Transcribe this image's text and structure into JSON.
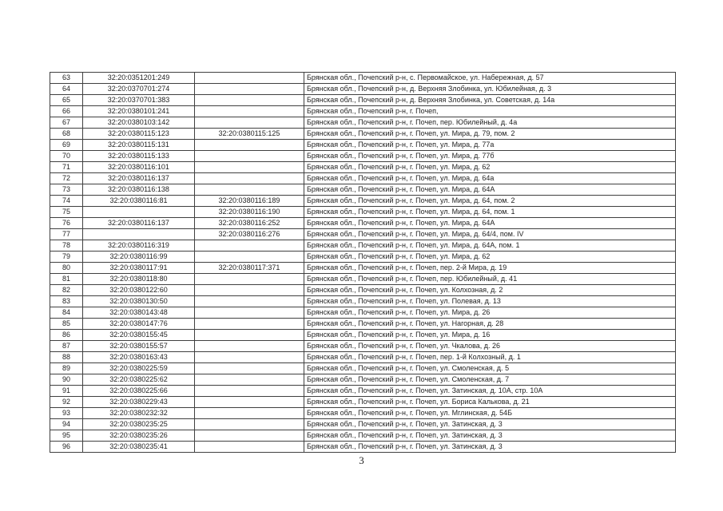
{
  "document": {
    "page_number": "3"
  },
  "table": {
    "columns": [
      "row_number",
      "cadastral_number_1",
      "cadastral_number_2",
      "address"
    ],
    "rows": [
      [
        "63",
        "32:20:0351201:249",
        "",
        "Брянская обл., Почепский р-н, с. Первомайское, ул. Набережная, д. 57"
      ],
      [
        "64",
        "32:20:0370701:274",
        "",
        "Брянская обл., Почепский р-н, д. Верхняя Злобинка, ул. Юбилейная, д. 3"
      ],
      [
        "65",
        "32:20:0370701:383",
        "",
        "Брянская обл., Почепский р-н, д. Верхняя Злобинка, ул. Советская, д. 14а"
      ],
      [
        "66",
        "32:20:0380101:241",
        "",
        "Брянская обл., Почепский р-н, г. Почеп,"
      ],
      [
        "67",
        "32:20:0380103:142",
        "",
        "Брянская обл., Почепский р-н, г. Почеп, пер. Юбилейный, д. 4а"
      ],
      [
        "68",
        "32:20:0380115:123",
        "32:20:0380115:125",
        "Брянская обл., Почепский р-н, г. Почеп, ул. Мира, д. 79, пом. 2"
      ],
      [
        "69",
        "32:20:0380115:131",
        "",
        "Брянская обл., Почепский р-н, г. Почеп, ул. Мира, д. 77а"
      ],
      [
        "70",
        "32:20:0380115:133",
        "",
        "Брянская обл., Почепский р-н, г. Почеп, ул. Мира, д. 77б"
      ],
      [
        "71",
        "32:20:0380116:101",
        "",
        "Брянская обл., Почепский р-н, г. Почеп, ул. Мира, д. 62"
      ],
      [
        "72",
        "32:20:0380116:137",
        "",
        "Брянская обл., Почепский р-н, г. Почеп, ул. Мира, д. 64а"
      ],
      [
        "73",
        "32:20:0380116:138",
        "",
        "Брянская обл., Почепский р-н, г. Почеп, ул. Мира, д. 64А"
      ],
      [
        "74",
        "32:20:0380116:81",
        "32:20:0380116:189",
        "Брянская обл., Почепский р-н, г. Почеп, ул. Мира, д. 64, пом. 2"
      ],
      [
        "75",
        "",
        "32:20:0380116:190",
        "Брянская обл., Почепский р-н, г. Почеп, ул. Мира, д. 64, пом. 1"
      ],
      [
        "76",
        "32:20:0380116:137",
        "32:20:0380116:252",
        "Брянская обл., Почепский р-н, г. Почеп, ул. Мира, д. 64А"
      ],
      [
        "77",
        "",
        "32:20:0380116:276",
        "Брянская обл., Почепский р-н, г. Почеп, ул. Мира, д. 64/4, пом. IV"
      ],
      [
        "78",
        "32:20:0380116:319",
        "",
        "Брянская обл., Почепский р-н, г. Почеп, ул. Мира, д. 64А, пом. 1"
      ],
      [
        "79",
        "32:20:0380116:99",
        "",
        "Брянская обл., Почепский р-н, г. Почеп, ул. Мира, д. 62"
      ],
      [
        "80",
        "32:20:0380117:91",
        "32:20:0380117:371",
        "Брянская обл., Почепский р-н, г. Почеп, пер. 2-й Мира, д. 19"
      ],
      [
        "81",
        "32:20:0380118:80",
        "",
        "Брянская обл., Почепский р-н, г. Почеп, пер. Юбилейный, д. 41"
      ],
      [
        "82",
        "32:20:0380122:60",
        "",
        "Брянская обл., Почепский р-н, г. Почеп, ул. Колхозная, д. 2"
      ],
      [
        "83",
        "32:20:0380130:50",
        "",
        "Брянская обл., Почепский р-н, г. Почеп, ул. Полевая, д. 13"
      ],
      [
        "84",
        "32:20:0380143:48",
        "",
        "Брянская обл., Почепский р-н, г. Почеп, ул. Мира, д. 26"
      ],
      [
        "85",
        "32:20:0380147:76",
        "",
        "Брянская обл., Почепский р-н, г. Почеп, ул. Нагорная, д. 28"
      ],
      [
        "86",
        "32:20:0380155:45",
        "",
        "Брянская обл., Почепский р-н, г. Почеп, ул. Мира, д. 16"
      ],
      [
        "87",
        "32:20:0380155:57",
        "",
        "Брянская обл., Почепский р-н, г. Почеп, ул. Чкалова, д. 26"
      ],
      [
        "88",
        "32:20:0380163:43",
        "",
        "Брянская обл., Почепский р-н, г. Почеп, пер. 1-й Колхозный, д. 1"
      ],
      [
        "89",
        "32:20:0380225:59",
        "",
        "Брянская обл., Почепский р-н, г. Почеп, ул. Смоленская, д. 5"
      ],
      [
        "90",
        "32:20:0380225:62",
        "",
        "Брянская обл., Почепский р-н, г. Почеп, ул. Смоленская, д. 7"
      ],
      [
        "91",
        "32:20:0380225:66",
        "",
        "Брянская обл., Почепский р-н, г. Почеп, ул. Затинская, д. 10А, стр. 10А"
      ],
      [
        "92",
        "32:20:0380229:43",
        "",
        "Брянская обл., Почепский р-н, г. Почеп, ул. Бориса Калькова, д. 21"
      ],
      [
        "93",
        "32:20:0380232:32",
        "",
        "Брянская обл., Почепский р-н, г. Почеп, ул. Мглинская, д. 54Б"
      ],
      [
        "94",
        "32:20:0380235:25",
        "",
        "Брянская обл., Почепский р-н, г. Почеп, ул. Затинская, д. 3"
      ],
      [
        "95",
        "32:20:0380235:26",
        "",
        "Брянская обл., Почепский р-н, г. Почеп, ул. Затинская, д. 3"
      ],
      [
        "96",
        "32:20:0380235:41",
        "",
        "Брянская обл., Почепский р-н, г. Почеп, ул. Затинская, д. 3"
      ]
    ]
  }
}
